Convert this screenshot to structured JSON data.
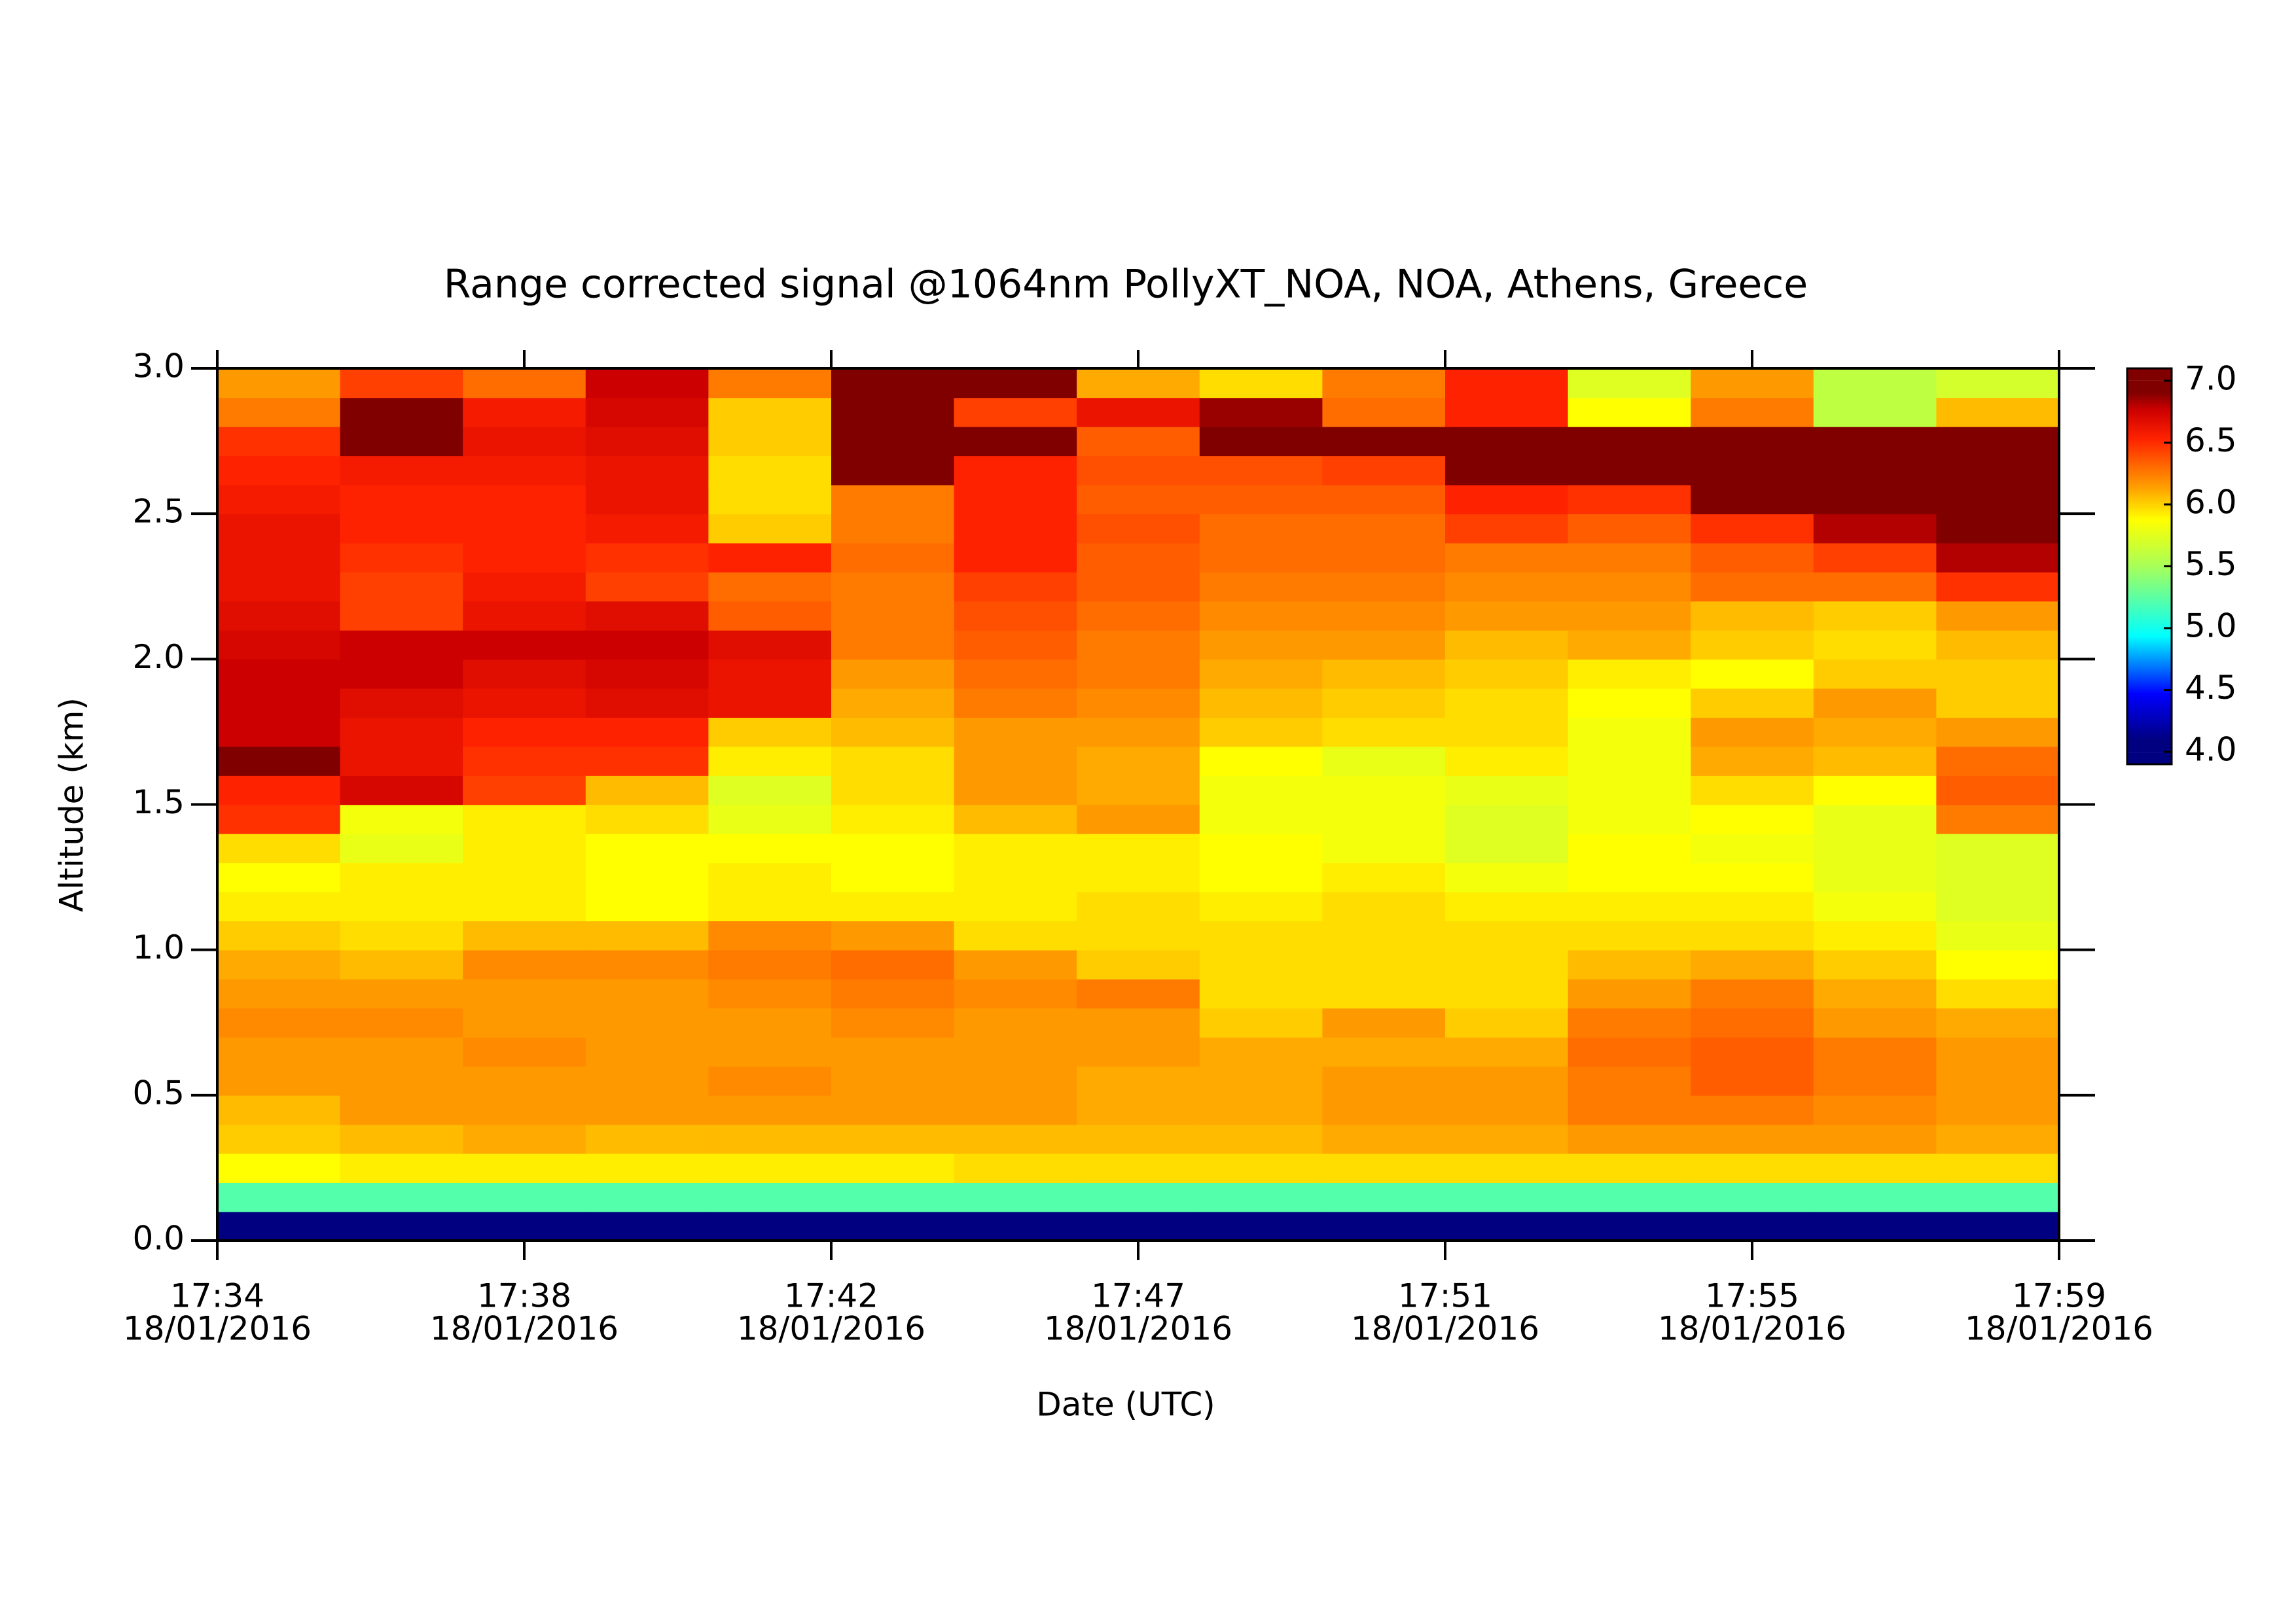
{
  "chart_data": {
    "type": "heatmap",
    "title": "Range corrected signal @1064nm  PollyXT_NOA, NOA, Athens, Greece",
    "xlabel": "Date (UTC)",
    "ylabel": "Altitude (km)",
    "xticks": [
      {
        "time": "17:34",
        "date": "18/01/2016"
      },
      {
        "time": "17:38",
        "date": "18/01/2016"
      },
      {
        "time": "17:42",
        "date": "18/01/2016"
      },
      {
        "time": "17:47",
        "date": "18/01/2016"
      },
      {
        "time": "17:51",
        "date": "18/01/2016"
      },
      {
        "time": "17:55",
        "date": "18/01/2016"
      },
      {
        "time": "17:59",
        "date": "18/01/2016"
      }
    ],
    "ylim": [
      0,
      3
    ],
    "yticks": [
      {
        "value": 0,
        "label": "0.0"
      },
      0.5,
      {
        "value": 1,
        "label": "1.0"
      },
      1.5,
      {
        "value": 2,
        "label": "2.0"
      },
      2.5,
      {
        "value": 3,
        "label": "3.0"
      }
    ],
    "ybins": [
      0,
      0.1,
      0.2,
      0.3,
      0.4,
      0.5,
      0.6,
      0.7,
      0.8,
      0.9,
      1.0,
      1.1,
      1.2,
      1.3,
      1.4,
      1.5,
      1.6,
      1.7,
      1.8,
      1.9,
      2.0,
      2.1,
      2.2,
      2.3,
      2.4,
      2.5,
      2.6,
      2.7,
      2.8,
      2.9,
      3.0
    ],
    "zlim": [
      3.9,
      7.1
    ],
    "zticks": [
      {
        "value": 4,
        "label": "4.0"
      },
      4.5,
      {
        "value": 5,
        "label": "5.0"
      },
      5.5,
      {
        "value": 6,
        "label": "6.0"
      },
      6.5,
      {
        "value": 7,
        "label": "7.0"
      }
    ],
    "colormap": [
      {
        "value": 4.0,
        "color": "#000080"
      },
      {
        "value": 4.4,
        "color": "#0000ff"
      },
      {
        "value": 4.9,
        "color": "#00ffff"
      },
      {
        "value": 5.5,
        "color": "#a8ff58"
      },
      {
        "value": 5.9,
        "color": "#ffff00"
      },
      {
        "value": 6.2,
        "color": "#ff9900"
      },
      {
        "value": 6.6,
        "color": "#ff2200"
      },
      {
        "value": 6.85,
        "color": "#cc0000"
      },
      {
        "value": 7.0,
        "color": "#800000"
      }
    ],
    "values": [
      [
        4.0,
        5.2,
        5.9,
        6.05,
        6.1,
        6.2,
        6.2,
        6.25,
        6.2,
        6.15,
        6.05,
        5.95,
        5.9,
        6.0,
        6.55,
        6.6,
        7.0,
        6.85,
        6.85,
        6.85,
        6.8,
        6.75,
        6.7,
        6.7,
        6.7,
        6.65,
        6.6,
        6.55,
        6.3,
        6.2
      ],
      [
        4.0,
        5.2,
        5.95,
        6.1,
        6.2,
        6.2,
        6.2,
        6.25,
        6.2,
        6.1,
        6.0,
        5.95,
        5.95,
        5.8,
        5.85,
        6.8,
        6.7,
        6.7,
        6.75,
        6.85,
        6.85,
        6.5,
        6.5,
        6.55,
        6.6,
        6.6,
        6.65,
        7.0,
        7.0,
        6.5
      ],
      [
        4.0,
        5.2,
        5.95,
        6.15,
        6.2,
        6.2,
        6.25,
        6.2,
        6.2,
        6.25,
        6.1,
        5.95,
        5.95,
        5.95,
        5.95,
        6.5,
        6.55,
        6.6,
        6.7,
        6.75,
        6.85,
        6.7,
        6.65,
        6.6,
        6.6,
        6.6,
        6.65,
        6.7,
        6.65,
        6.35
      ],
      [
        4.0,
        5.2,
        5.95,
        6.1,
        6.2,
        6.2,
        6.2,
        6.2,
        6.2,
        6.25,
        6.1,
        5.9,
        5.9,
        5.9,
        6.0,
        6.1,
        6.55,
        6.6,
        6.75,
        6.8,
        6.85,
        6.75,
        6.5,
        6.55,
        6.65,
        6.7,
        6.7,
        6.75,
        6.8,
        6.85
      ],
      [
        4.0,
        5.2,
        5.95,
        6.1,
        6.2,
        6.25,
        6.2,
        6.2,
        6.25,
        6.3,
        6.25,
        5.95,
        5.95,
        5.9,
        5.8,
        5.75,
        5.95,
        6.05,
        6.7,
        6.7,
        6.75,
        6.4,
        6.35,
        6.6,
        6.05,
        6.0,
        6.0,
        6.05,
        6.05,
        6.3
      ],
      [
        4.0,
        5.2,
        5.95,
        6.1,
        6.2,
        6.2,
        6.2,
        6.25,
        6.3,
        6.35,
        6.2,
        5.95,
        5.9,
        5.9,
        5.95,
        6.0,
        6.0,
        6.1,
        6.15,
        6.2,
        6.3,
        6.3,
        6.3,
        6.35,
        6.3,
        6.3,
        7.0,
        7.0,
        7.0,
        7.0
      ],
      [
        4.0,
        5.2,
        6.0,
        6.1,
        6.2,
        6.2,
        6.2,
        6.2,
        6.25,
        6.2,
        6.0,
        5.95,
        5.95,
        5.95,
        6.1,
        6.2,
        6.2,
        6.2,
        6.3,
        6.35,
        6.4,
        6.45,
        6.5,
        6.6,
        6.6,
        6.6,
        6.6,
        7.0,
        6.5,
        7.0
      ],
      [
        4.0,
        5.2,
        6.0,
        6.1,
        6.15,
        6.15,
        6.2,
        6.2,
        6.3,
        6.05,
        6.0,
        6.0,
        5.95,
        5.95,
        6.2,
        6.15,
        6.15,
        6.2,
        6.25,
        6.3,
        6.3,
        6.35,
        6.4,
        6.4,
        6.45,
        6.4,
        6.45,
        6.4,
        6.7,
        6.15
      ],
      [
        4.0,
        5.2,
        6.0,
        6.1,
        6.15,
        6.15,
        6.15,
        6.05,
        6.0,
        6.0,
        6.0,
        5.95,
        5.9,
        5.9,
        5.85,
        5.85,
        5.9,
        6.05,
        6.1,
        6.15,
        6.2,
        6.25,
        6.3,
        6.35,
        6.35,
        6.4,
        6.45,
        7.0,
        6.95,
        6.0
      ],
      [
        4.0,
        5.2,
        6.0,
        6.15,
        6.2,
        6.2,
        6.15,
        6.2,
        6.0,
        6.0,
        6.0,
        6.0,
        5.95,
        5.85,
        5.85,
        5.85,
        5.8,
        6.0,
        6.05,
        6.1,
        6.2,
        6.25,
        6.3,
        6.35,
        6.35,
        6.4,
        6.5,
        7.0,
        6.35,
        6.3
      ],
      [
        4.0,
        5.2,
        6.0,
        6.15,
        6.2,
        6.2,
        6.15,
        6.05,
        6.0,
        6.0,
        6.0,
        5.95,
        5.85,
        5.75,
        5.75,
        5.8,
        5.95,
        6.0,
        6.0,
        6.05,
        6.1,
        6.2,
        6.25,
        6.3,
        6.5,
        6.6,
        7.0,
        7.0,
        6.6,
        6.6
      ],
      [
        4.0,
        5.2,
        6.0,
        6.2,
        6.3,
        6.3,
        6.35,
        6.3,
        6.2,
        6.1,
        6.0,
        5.95,
        5.9,
        5.9,
        5.85,
        5.85,
        5.85,
        5.85,
        5.9,
        5.95,
        6.15,
        6.2,
        6.25,
        6.3,
        6.4,
        6.55,
        7.0,
        7.0,
        5.9,
        5.75
      ],
      [
        4.0,
        5.2,
        6.0,
        6.2,
        6.3,
        6.4,
        6.4,
        6.35,
        6.3,
        6.15,
        6.0,
        5.95,
        5.9,
        5.85,
        5.9,
        6.0,
        6.15,
        6.2,
        6.05,
        5.9,
        6.05,
        6.1,
        6.35,
        6.4,
        6.55,
        7.0,
        7.0,
        7.0,
        6.3,
        6.2
      ],
      [
        4.0,
        5.2,
        6.0,
        6.2,
        6.25,
        6.3,
        6.3,
        6.2,
        6.15,
        6.05,
        5.95,
        5.85,
        5.8,
        5.8,
        5.8,
        5.9,
        6.1,
        6.15,
        6.2,
        6.05,
        6.0,
        6.05,
        6.35,
        6.5,
        6.9,
        7.0,
        7.0,
        7.0,
        5.6,
        5.6
      ],
      [
        4.0,
        5.2,
        6.0,
        6.15,
        6.2,
        6.2,
        6.2,
        6.15,
        6.0,
        5.9,
        5.8,
        5.75,
        5.75,
        5.75,
        6.3,
        6.4,
        6.35,
        6.2,
        6.05,
        6.05,
        6.1,
        6.2,
        6.55,
        6.9,
        7.0,
        7.0,
        7.0,
        7.0,
        6.1,
        5.7
      ]
    ]
  }
}
